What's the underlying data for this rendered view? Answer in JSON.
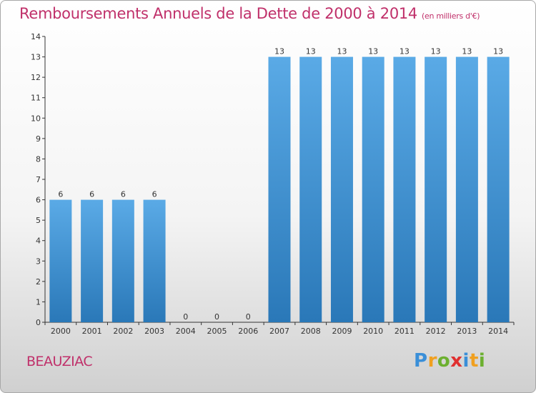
{
  "header": {
    "title": "Remboursements Annuels de la Dette de 2000 à 2014",
    "subtitle": "(en milliers d'€)"
  },
  "footer": {
    "commune": "BEAUZIAC",
    "logo": "Proxiti"
  },
  "colors": {
    "bar_top": "#5aaae6",
    "bar_bottom": "#2a78b8",
    "title": "#c0306a",
    "axis": "#333333"
  },
  "chart_data": {
    "type": "bar",
    "title": "Remboursements Annuels de la Dette de 2000 à 2014",
    "subtitle": "(en milliers d'€)",
    "categories": [
      "2000",
      "2001",
      "2002",
      "2003",
      "2004",
      "2005",
      "2006",
      "2007",
      "2008",
      "2009",
      "2010",
      "2011",
      "2012",
      "2013",
      "2014"
    ],
    "values": [
      6,
      6,
      6,
      6,
      0,
      0,
      0,
      13,
      13,
      13,
      13,
      13,
      13,
      13,
      13
    ],
    "ylim": [
      0,
      14
    ],
    "yticks": [
      0,
      1,
      2,
      3,
      4,
      5,
      6,
      7,
      8,
      9,
      10,
      11,
      12,
      13,
      14
    ],
    "grid": false,
    "data_labels": true
  }
}
